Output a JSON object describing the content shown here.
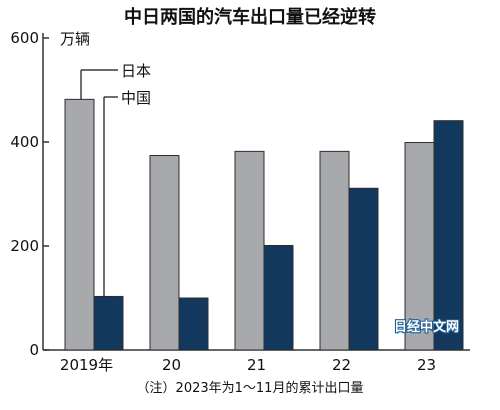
{
  "chart_data": {
    "type": "bar",
    "title": "中日两国的汽车出口量已经逆转",
    "unit_label": "万辆",
    "categories": [
      "2019年",
      "20",
      "21",
      "22",
      "23"
    ],
    "series": [
      {
        "name": "日本",
        "values": [
          482,
          374,
          382,
          382,
          399
        ],
        "color": "#a7a9ac"
      },
      {
        "name": "中国",
        "values": [
          103,
          100,
          201,
          311,
          441
        ],
        "color": "#12385e"
      }
    ],
    "y_ticks": [
      0,
      200,
      400,
      600
    ],
    "ylim": [
      0,
      600
    ],
    "grid": false,
    "legend_placement": "callout labels next to the first bar pair",
    "note": "（注）2023年为1～11月的累计出口量",
    "watermark": "日经中文网"
  }
}
